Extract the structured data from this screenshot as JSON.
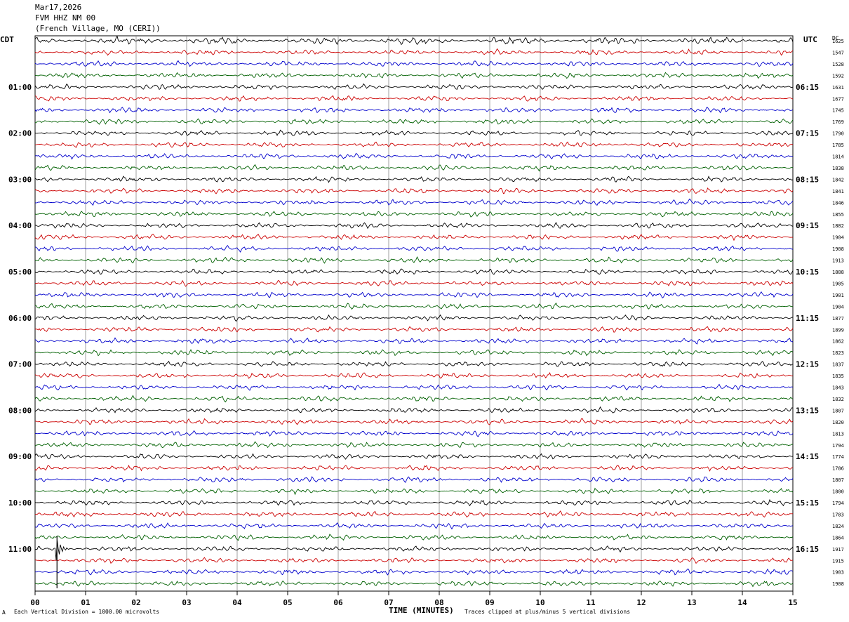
{
  "header": {
    "date": "Mar17,2026",
    "station": "FVM HHZ NM 00",
    "location": "(French Village, MO (CERI))"
  },
  "left_label": "CDT",
  "right_label": "UTC",
  "right_top_label": "DC",
  "footer": {
    "scale_note": "Each Vertical Division = 1000.00 microvolts",
    "clip_note": "Traces clipped at plus/minus 5 vertical divisions",
    "small_mark": "A"
  },
  "colors": {
    "cycle": [
      "#000000",
      "#cc0000",
      "#0000cc",
      "#006000"
    ],
    "grid": "#888888"
  },
  "chart_data": {
    "type": "line",
    "title": "FVM HHZ NM 00",
    "xlabel": "TIME (MINUTES)",
    "xlim": [
      0,
      15
    ],
    "x_ticks": [
      "00",
      "01",
      "02",
      "03",
      "04",
      "05",
      "06",
      "07",
      "08",
      "09",
      "10",
      "11",
      "12",
      "13",
      "14",
      "15"
    ],
    "trace_count": 48,
    "minutes_per_trace": 15,
    "left_hour_labels": [
      "01:00",
      "02:00",
      "03:00",
      "04:00",
      "05:00",
      "06:00",
      "07:00",
      "08:00",
      "09:00",
      "10:00",
      "11:00"
    ],
    "right_hour_labels": [
      "06:15",
      "07:15",
      "08:15",
      "09:15",
      "10:15",
      "11:15",
      "12:15",
      "13:15",
      "14:15",
      "15:15",
      "16:15"
    ],
    "hour_label_trace_index": [
      4,
      8,
      12,
      16,
      20,
      24,
      28,
      32,
      36,
      40,
      44
    ],
    "dc_offsets": [
      "1625",
      "1547",
      "1528",
      "1592",
      "1631",
      "1677",
      "1745",
      "1769",
      "1790",
      "1785",
      "1814",
      "1838",
      "1842",
      "1841",
      "1846",
      "1855",
      "1882",
      "1904",
      "1908",
      "1913",
      "1888",
      "1905",
      "1901",
      "1904",
      "1877",
      "1899",
      "1862",
      "1823",
      "1837",
      "1835",
      "1843",
      "1832",
      "1807",
      "1820",
      "1813",
      "1794",
      "1774",
      "1786",
      "1807",
      "1800",
      "1794",
      "1783",
      "1824",
      "1864",
      "1917",
      "1915",
      "1903",
      "1908"
    ],
    "event": {
      "trace_index": 44,
      "minute": 0.42
    }
  }
}
